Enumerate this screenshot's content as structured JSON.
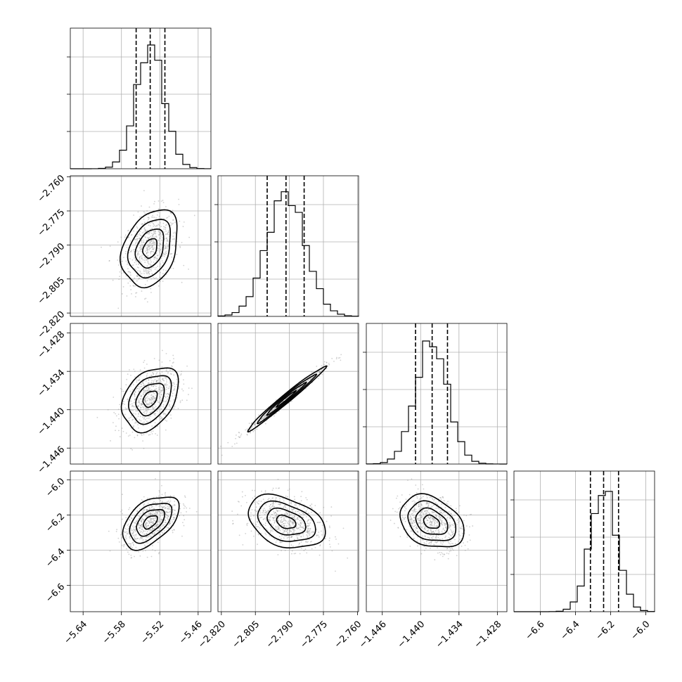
{
  "chart_data": {
    "type": "corner",
    "grid": true,
    "parameters": [
      {
        "ticks": [
          -5.64,
          -5.58,
          -5.52,
          -5.46
        ],
        "tick_labels": [
          "−5.64",
          "−5.58",
          "−5.52",
          "−5.46"
        ],
        "range": [
          -5.66,
          -5.44
        ],
        "mean": -5.535,
        "std": 0.022,
        "quantiles": [
          -5.557,
          -5.535,
          -5.512
        ]
      },
      {
        "ticks": [
          -2.82,
          -2.805,
          -2.79,
          -2.775,
          -2.76
        ],
        "tick_labels": [
          "−2.820",
          "−2.805",
          "−2.790",
          "−2.775",
          "−2.760"
        ],
        "range": [
          -2.8215,
          -2.7595
        ],
        "mean": -2.7915,
        "std": 0.0085,
        "quantiles": [
          -2.7998,
          -2.7915,
          -2.7835
        ]
      },
      {
        "ticks": [
          -1.446,
          -1.44,
          -1.434,
          -1.428
        ],
        "tick_labels": [
          "−1.446",
          "−1.440",
          "−1.434",
          "−1.428"
        ],
        "range": [
          -1.4485,
          -1.4265
        ],
        "mean": -1.4383,
        "std": 0.0025,
        "quantiles": [
          -1.4408,
          -1.4382,
          -1.4358
        ]
      },
      {
        "ticks": [
          -6.6,
          -6.4,
          -6.2,
          -6.0
        ],
        "tick_labels": [
          "−6.6",
          "−6.4",
          "−6.2",
          "−6.0"
        ],
        "range": [
          -6.75,
          -5.95
        ],
        "mean": -6.24,
        "std": 0.075,
        "quantiles": [
          -6.315,
          -6.24,
          -6.155
        ]
      }
    ],
    "correlations": [
      {
        "pair": [
          0,
          1
        ],
        "r": 0.3
      },
      {
        "pair": [
          0,
          2
        ],
        "r": 0.35
      },
      {
        "pair": [
          0,
          3
        ],
        "r": 0.5
      },
      {
        "pair": [
          1,
          2
        ],
        "r": 0.985
      },
      {
        "pair": [
          1,
          3
        ],
        "r": -0.35
      },
      {
        "pair": [
          2,
          3
        ],
        "r": -0.3
      }
    ],
    "contour_levels_sigma": [
      0.5,
      1.0,
      1.5,
      2.0
    ]
  }
}
